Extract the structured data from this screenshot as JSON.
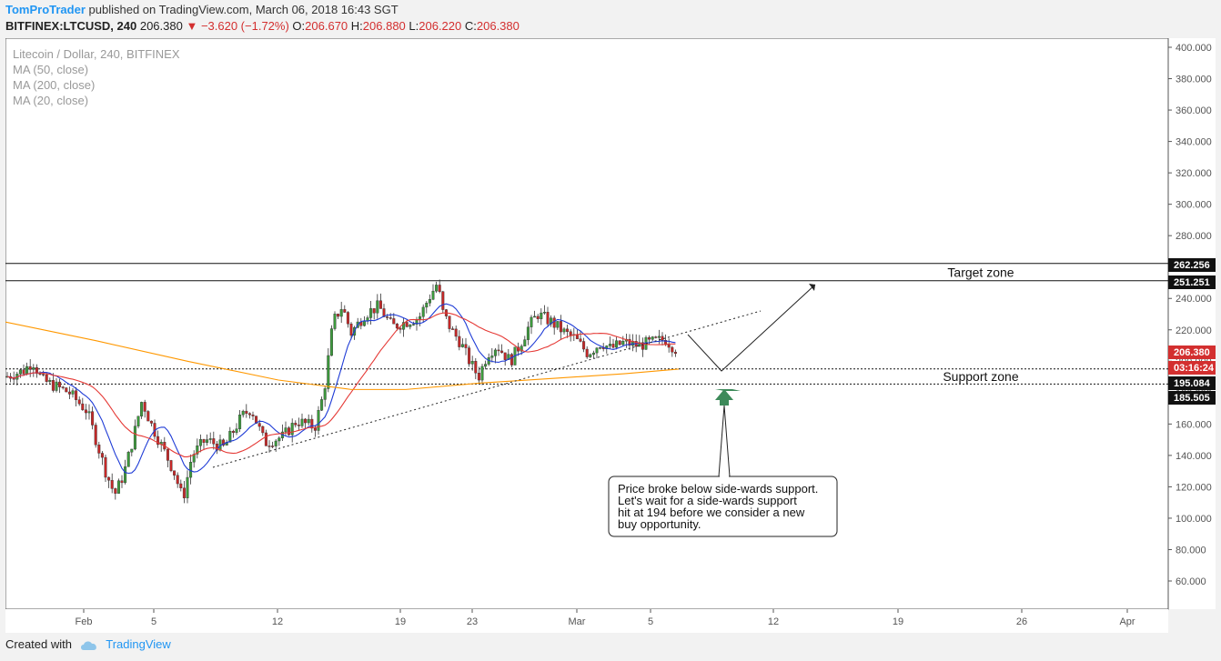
{
  "header": {
    "author": "TomProTrader",
    "published": "published on TradingView.com, March 06, 2018 16:43 SGT",
    "symbol": "BITFINEX:LTCUSD, 240",
    "last": "206.380",
    "change": "▼ −3.620 (−1.72%)",
    "o_label": "O:",
    "o_value": "206.670",
    "h_label": "H:",
    "h_value": "206.880",
    "l_label": "L:",
    "l_value": "206.220",
    "c_label": "C:",
    "c_value": "206.380"
  },
  "footer": {
    "created_with": "Created with",
    "brand": "TradingView"
  },
  "chart_data": {
    "type": "candlestick",
    "title": "Litecoin / Dollar, 240, BITFINEX",
    "indicators": [
      "MA (50, close)",
      "MA (200, close)",
      "MA (20, close)"
    ],
    "ylim": [
      50,
      405
    ],
    "y_ticks": [
      "400.000",
      "380.000",
      "360.000",
      "340.000",
      "320.000",
      "300.000",
      "280.000",
      "260.000",
      "240.000",
      "220.000",
      "200.000",
      "180.000",
      "160.000",
      "140.000",
      "120.000",
      "100.000",
      "80.000",
      "60.000"
    ],
    "x_ticks": [
      "Feb",
      "5",
      "12",
      "19",
      "23",
      "Mar",
      "5",
      "12",
      "19",
      "26",
      "Apr"
    ],
    "price_levels": [
      {
        "label": "262.256",
        "value": 262.256
      },
      {
        "label": "251.251",
        "value": 251.251
      },
      {
        "label": "206.380",
        "value": 206.38,
        "color": "#d32f2f"
      },
      {
        "label": "03:16:24",
        "value": 199.5,
        "color": "#d32f2f"
      },
      {
        "label": "195.084",
        "value": 195.084
      },
      {
        "label": "185.505",
        "value": 185.505
      }
    ],
    "zones": [
      {
        "label": "Target zone",
        "low": 251.251,
        "high": 262.256,
        "style": "solid"
      },
      {
        "label": "Support zone",
        "low": 185.505,
        "high": 195.084,
        "style": "dotted"
      }
    ],
    "annotation": "Price broke below side-wards support. Let's wait for a side-wards support hit at 194 before we consider a new buy opportunity.",
    "colors": {
      "up": "#3c9a3c",
      "down": "#c62828",
      "ma50": "#e53935",
      "ma200": "#ff9800",
      "ma20": "#1e3bd6",
      "arrow": "#3d8a5a"
    }
  }
}
